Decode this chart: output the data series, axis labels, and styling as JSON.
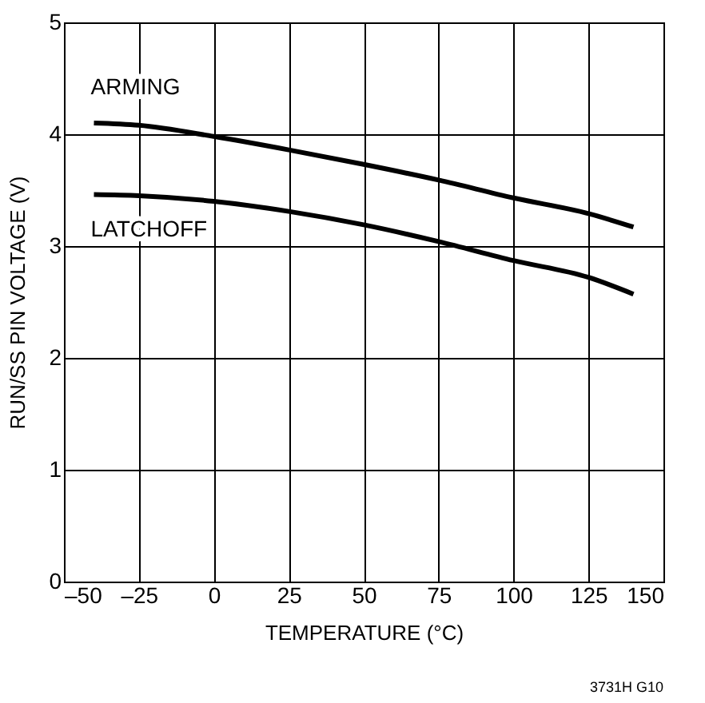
{
  "chart_data": {
    "type": "line",
    "xlabel": "TEMPERATURE (°C)",
    "ylabel": "RUN/SS PIN VOLTAGE (V)",
    "x": [
      -40,
      -25,
      0,
      25,
      50,
      75,
      100,
      125,
      140
    ],
    "series": [
      {
        "name": "ARMING",
        "color": "#000000",
        "values": [
          4.1,
          4.08,
          3.98,
          3.86,
          3.73,
          3.59,
          3.43,
          3.29,
          3.17
        ]
      },
      {
        "name": "LATCHOFF",
        "color": "#000000",
        "values": [
          3.46,
          3.45,
          3.4,
          3.31,
          3.19,
          3.04,
          2.87,
          2.72,
          2.57
        ]
      }
    ],
    "xlim": [
      -50,
      150
    ],
    "xticks": [
      {
        "value": -50,
        "label": "–50"
      },
      {
        "value": -25,
        "label": "–25"
      },
      0,
      25,
      50,
      75,
      100,
      125,
      150
    ],
    "ylim": [
      0,
      5
    ],
    "yticks": [
      0,
      1,
      2,
      3,
      4,
      5
    ],
    "grid": true,
    "marker": "none",
    "line_style": "solid",
    "annotations": [
      "3731H G10"
    ]
  }
}
